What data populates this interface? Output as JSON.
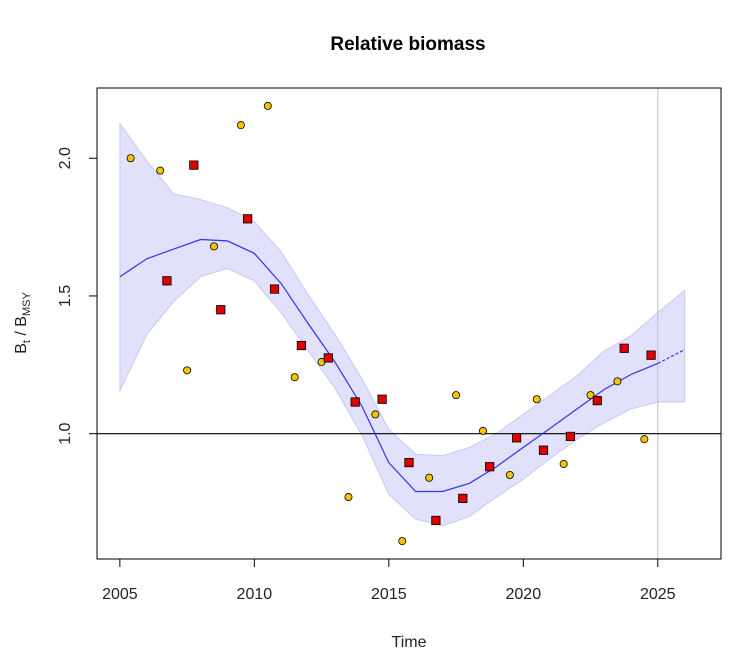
{
  "chart_data": {
    "type": "scatter",
    "title": "Relative biomass",
    "xlabel": "Time",
    "ylabel": {
      "base": "B",
      "sub1": "t",
      "sep": " / B",
      "sub2": "MSY"
    },
    "xlim": [
      2004.15,
      2027.35
    ],
    "ylim": [
      0.545,
      2.255
    ],
    "x_ticks": [
      2005,
      2010,
      2015,
      2020,
      2025
    ],
    "y_ticks": [
      1.0,
      1.5,
      2.0
    ],
    "y_tick_labels": [
      "1.0",
      "1.5",
      "2.0"
    ],
    "reference_line_y": 1.0,
    "vertical_line_x": 2025,
    "grid": false,
    "colors": {
      "band": "#dcdcfa",
      "fit_line": "#3333ee",
      "circles": "#f5c400",
      "squares": "#dd0000",
      "reference_line": "#000000",
      "vertical_line": "#bfbfbf"
    },
    "series": [
      {
        "marker": "circle",
        "points": [
          [
            2005.4,
            2.0
          ],
          [
            2006.5,
            1.955
          ],
          [
            2007.5,
            1.23
          ],
          [
            2008.5,
            1.68
          ],
          [
            2009.5,
            2.12
          ],
          [
            2010.5,
            2.19
          ],
          [
            2011.5,
            1.205
          ],
          [
            2012.5,
            1.26
          ],
          [
            2013.5,
            0.77
          ],
          [
            2014.5,
            1.07
          ],
          [
            2015.5,
            0.61
          ],
          [
            2016.5,
            0.84
          ],
          [
            2017.5,
            1.14
          ],
          [
            2018.5,
            1.01
          ],
          [
            2019.5,
            0.85
          ],
          [
            2020.5,
            1.125
          ],
          [
            2021.5,
            0.89
          ],
          [
            2022.5,
            1.14
          ],
          [
            2023.5,
            1.19
          ],
          [
            2024.5,
            0.98
          ]
        ]
      },
      {
        "marker": "square",
        "points": [
          [
            2006.75,
            1.555
          ],
          [
            2007.75,
            1.975
          ],
          [
            2008.75,
            1.45
          ],
          [
            2009.75,
            1.78
          ],
          [
            2010.75,
            1.525
          ],
          [
            2011.75,
            1.32
          ],
          [
            2012.75,
            1.275
          ],
          [
            2013.75,
            1.115
          ],
          [
            2014.75,
            1.125
          ],
          [
            2015.75,
            0.895
          ],
          [
            2016.75,
            0.685
          ],
          [
            2017.75,
            0.765
          ],
          [
            2018.75,
            0.88
          ],
          [
            2019.75,
            0.985
          ],
          [
            2020.75,
            0.94
          ],
          [
            2021.75,
            0.99
          ],
          [
            2022.75,
            1.12
          ],
          [
            2023.75,
            1.31
          ],
          [
            2024.75,
            1.285
          ]
        ]
      }
    ],
    "fit": {
      "x": [
        2005,
        2006,
        2007,
        2008,
        2009,
        2010,
        2011,
        2012,
        2013,
        2014,
        2015,
        2016,
        2017,
        2018,
        2019,
        2020,
        2021,
        2022,
        2023,
        2024,
        2025,
        2026
      ],
      "y": [
        1.57,
        1.635,
        1.67,
        1.705,
        1.7,
        1.655,
        1.545,
        1.4,
        1.26,
        1.1,
        0.895,
        0.79,
        0.79,
        0.82,
        0.88,
        0.95,
        1.02,
        1.09,
        1.16,
        1.215,
        1.255,
        1.305
      ],
      "lower": [
        1.155,
        1.36,
        1.48,
        1.57,
        1.6,
        1.555,
        1.44,
        1.3,
        1.165,
        0.995,
        0.78,
        0.69,
        0.665,
        0.7,
        0.77,
        0.835,
        0.91,
        0.98,
        1.04,
        1.09,
        1.115,
        1.115
      ],
      "upper": [
        2.125,
        1.99,
        1.87,
        1.85,
        1.82,
        1.77,
        1.66,
        1.505,
        1.36,
        1.2,
        1.015,
        0.925,
        0.92,
        0.95,
        1.0,
        1.07,
        1.14,
        1.21,
        1.3,
        1.355,
        1.44,
        1.52
      ],
      "dashed_from_x": 2025
    }
  }
}
